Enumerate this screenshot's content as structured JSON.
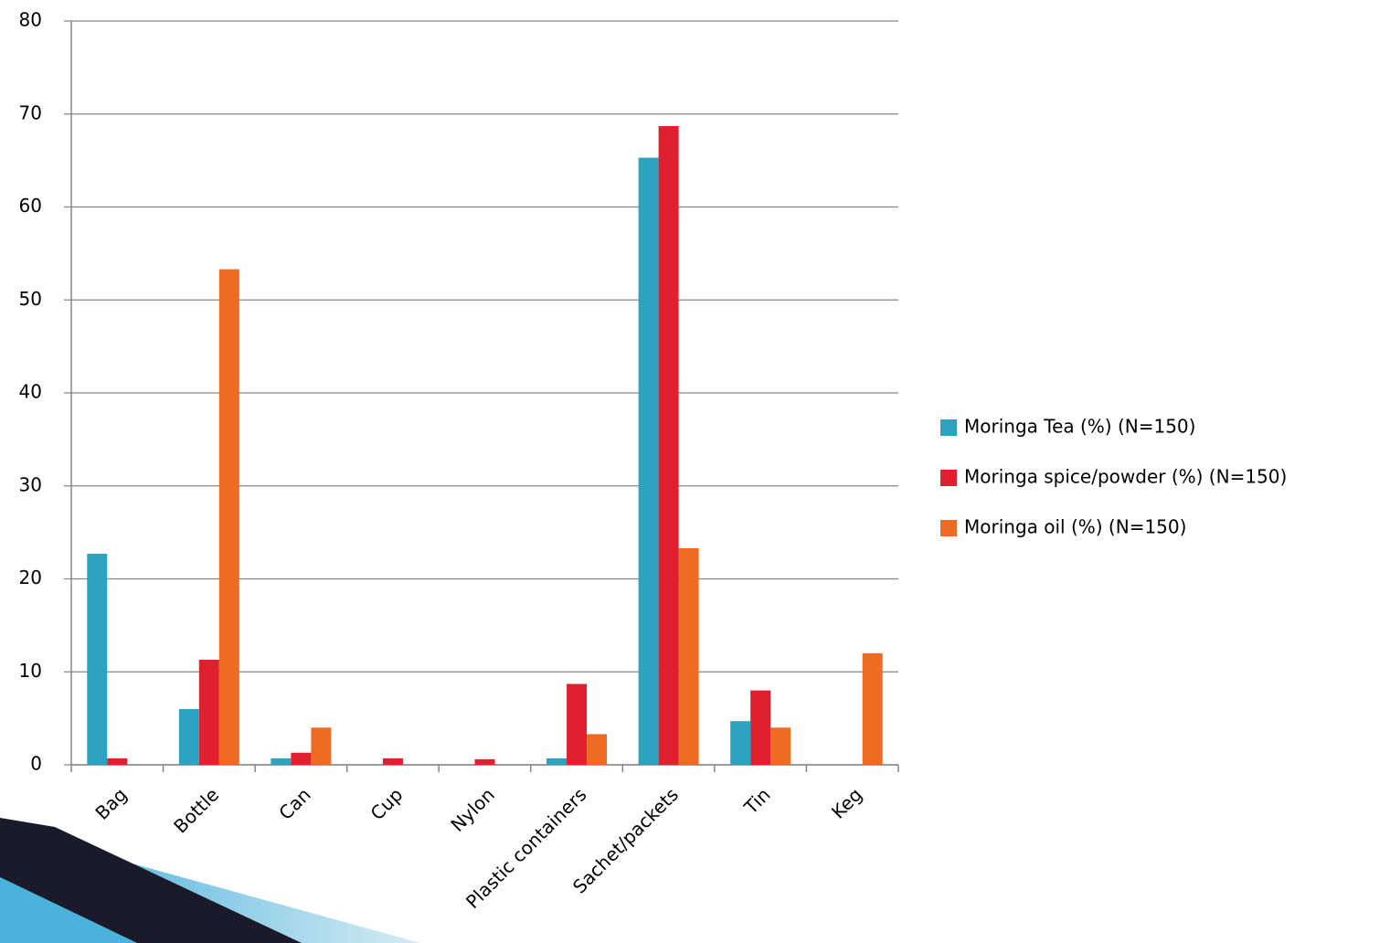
{
  "chart_data": {
    "type": "bar",
    "categories": [
      "Bag",
      "Bottle",
      "Can",
      "Cup",
      "Nylon",
      "Plastic containers",
      "Sachet/packets",
      "Tin",
      "Keg"
    ],
    "series": [
      {
        "name": "Moringa Tea (%) (N=150)",
        "color": "#2ea3c1",
        "values": [
          22.7,
          6,
          0.7,
          0,
          0,
          0.7,
          65.3,
          4.7,
          0
        ]
      },
      {
        "name": "Moringa spice/powder (%) (N=150)",
        "color": "#e0202e",
        "values": [
          0.7,
          11.3,
          1.3,
          0.7,
          0.6,
          8.7,
          68.7,
          8,
          0
        ]
      },
      {
        "name": "Moringa oil (%) (N=150)",
        "color": "#ef6a22",
        "values": [
          0,
          53.3,
          4,
          0,
          0,
          3.3,
          23.3,
          4,
          12
        ]
      }
    ],
    "ylim": [
      0,
      80
    ],
    "yticks": [
      0,
      10,
      20,
      30,
      40,
      50,
      60,
      70,
      80
    ],
    "grid": true,
    "legend": "right"
  }
}
